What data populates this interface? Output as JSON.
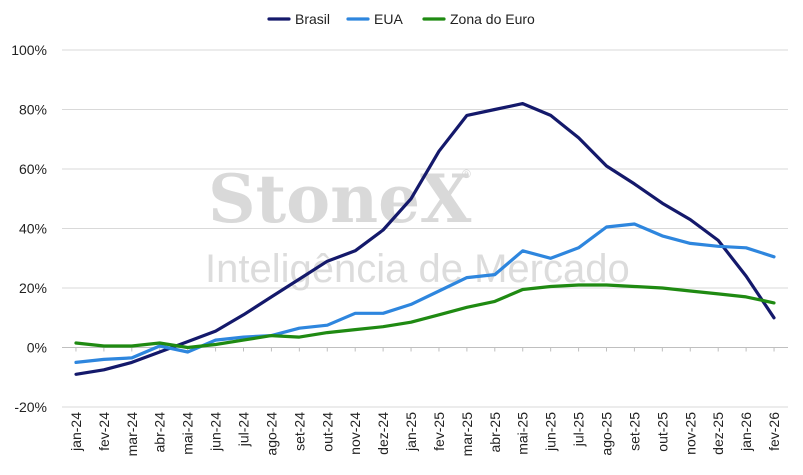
{
  "chart_data": {
    "type": "line",
    "title": "",
    "xlabel": "",
    "ylabel": "",
    "ylim": [
      -20,
      100
    ],
    "yticks": [
      -20,
      0,
      20,
      40,
      60,
      80,
      100
    ],
    "ytick_labels": [
      "-20%",
      "0%",
      "20%",
      "40%",
      "60%",
      "80%",
      "100%"
    ],
    "grid": "horizontal",
    "legend_position": "top-center",
    "categories": [
      "jan-24",
      "fev-24",
      "mar-24",
      "abr-24",
      "mai-24",
      "jun-24",
      "jul-24",
      "ago-24",
      "set-24",
      "out-24",
      "nov-24",
      "dez-24",
      "jan-25",
      "fev-25",
      "mar-25",
      "abr-25",
      "mai-25",
      "jun-25",
      "jul-25",
      "ago-25",
      "set-25",
      "out-25",
      "nov-25",
      "dez-25",
      "jan-26",
      "fev-26"
    ],
    "series": [
      {
        "name": "Brasil",
        "color": "#14196b",
        "values": [
          -9,
          -7.5,
          -5,
          -1.5,
          2,
          5.5,
          11,
          17,
          23,
          29,
          32.5,
          39.5,
          50,
          66,
          78,
          80,
          82,
          78,
          70.5,
          61,
          55,
          48.5,
          43,
          36,
          24,
          10
        ]
      },
      {
        "name": "EUA",
        "color": "#2e86de",
        "values": [
          -5,
          -4,
          -3.5,
          0.5,
          -1.5,
          2.5,
          3.5,
          4,
          6.5,
          7.5,
          11.5,
          11.5,
          14.5,
          19,
          23.5,
          24.5,
          32.5,
          30,
          33.5,
          40.5,
          41.5,
          37.5,
          35,
          34,
          33.5,
          30.5
        ]
      },
      {
        "name": "Zona do Euro",
        "color": "#1f8a12",
        "values": [
          1.5,
          0.5,
          0.5,
          1.5,
          0,
          1,
          2.5,
          4,
          3.5,
          5,
          6,
          7,
          8.5,
          11,
          13.5,
          15.5,
          19.5,
          20.5,
          21,
          21,
          20.5,
          20,
          19,
          18,
          17,
          15
        ]
      }
    ]
  },
  "watermark": {
    "brand": "StoneX",
    "registered": "®",
    "tagline": "Inteligência de Mercado"
  },
  "colors": {
    "gridline": "#d9d9d9",
    "zero_line": "#bfbfbf",
    "text": "#222222"
  }
}
